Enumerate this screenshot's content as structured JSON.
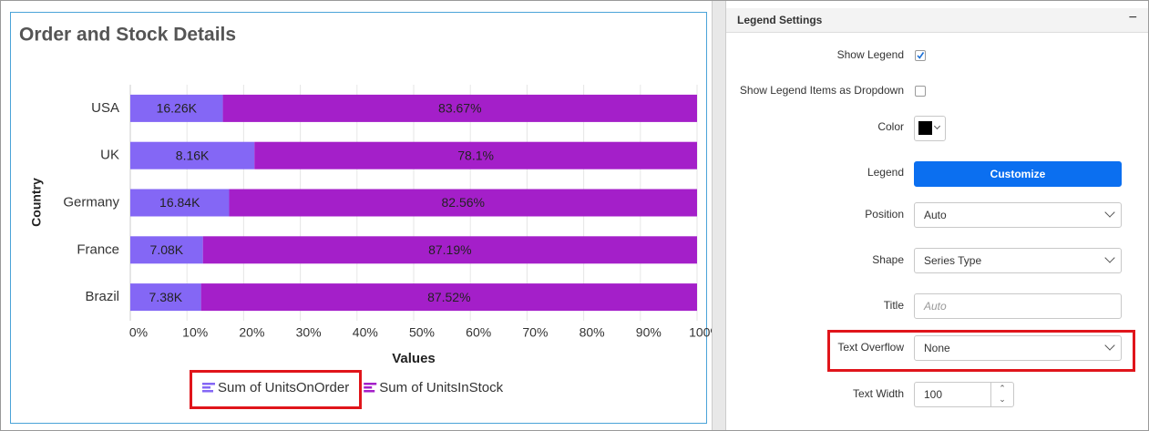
{
  "chart_data": {
    "type": "stacked_bar_100",
    "title": "Order and Stock Details",
    "y_label": "Country",
    "x_label": "Values",
    "categories": [
      "USA",
      "UK",
      "Germany",
      "France",
      "Brazil"
    ],
    "series": [
      {
        "name": "Sum of UnitsOnOrder",
        "color": "#8467f5",
        "values": [
          16.33,
          21.9,
          17.44,
          12.81,
          12.48
        ],
        "value_labels": [
          "16.26K",
          "8.16K",
          "16.84K",
          "7.08K",
          "7.38K"
        ]
      },
      {
        "name": "Sum of UnitsInStock",
        "color": "#a41fc9",
        "values": [
          83.67,
          78.1,
          82.56,
          87.19,
          87.52
        ],
        "value_labels": [
          "83.67%",
          "78.1%",
          "82.56%",
          "87.19%",
          "87.52%"
        ]
      }
    ],
    "xlim": [
      0,
      100
    ],
    "xticks": [
      {
        "value": 0,
        "label": "0%"
      },
      {
        "value": 10,
        "label": "10%"
      },
      {
        "value": 20,
        "label": "20%"
      },
      {
        "value": 30,
        "label": "30%"
      },
      {
        "value": 40,
        "label": "40%"
      },
      {
        "value": 50,
        "label": "50%"
      },
      {
        "value": 60,
        "label": "60%"
      },
      {
        "value": 70,
        "label": "70%"
      },
      {
        "value": 80,
        "label": "80%"
      },
      {
        "value": 90,
        "label": "90%"
      },
      {
        "value": 100,
        "label": "100%"
      }
    ],
    "grid": true
  },
  "panel": {
    "title": "Legend Settings",
    "collapse": "−",
    "rows": [
      {
        "label": "Show Legend",
        "control": "checkbox",
        "checked": true
      },
      {
        "label": "Show Legend Items as Dropdown",
        "control": "checkbox",
        "checked": false
      },
      {
        "label": "Color",
        "control": "color",
        "color": "#000000"
      },
      {
        "label": "Legend",
        "control": "button",
        "text": "Customize"
      },
      {
        "label": "Position",
        "control": "dropdown",
        "text": "Auto"
      },
      {
        "label": "Shape",
        "control": "dropdown",
        "text": "Series Type"
      },
      {
        "label": "Title",
        "control": "input",
        "placeholder": "Auto"
      },
      {
        "label": "Text Overflow",
        "control": "dropdown",
        "text": "None"
      },
      {
        "label": "Text Width",
        "control": "spinner",
        "text": "100"
      }
    ]
  }
}
